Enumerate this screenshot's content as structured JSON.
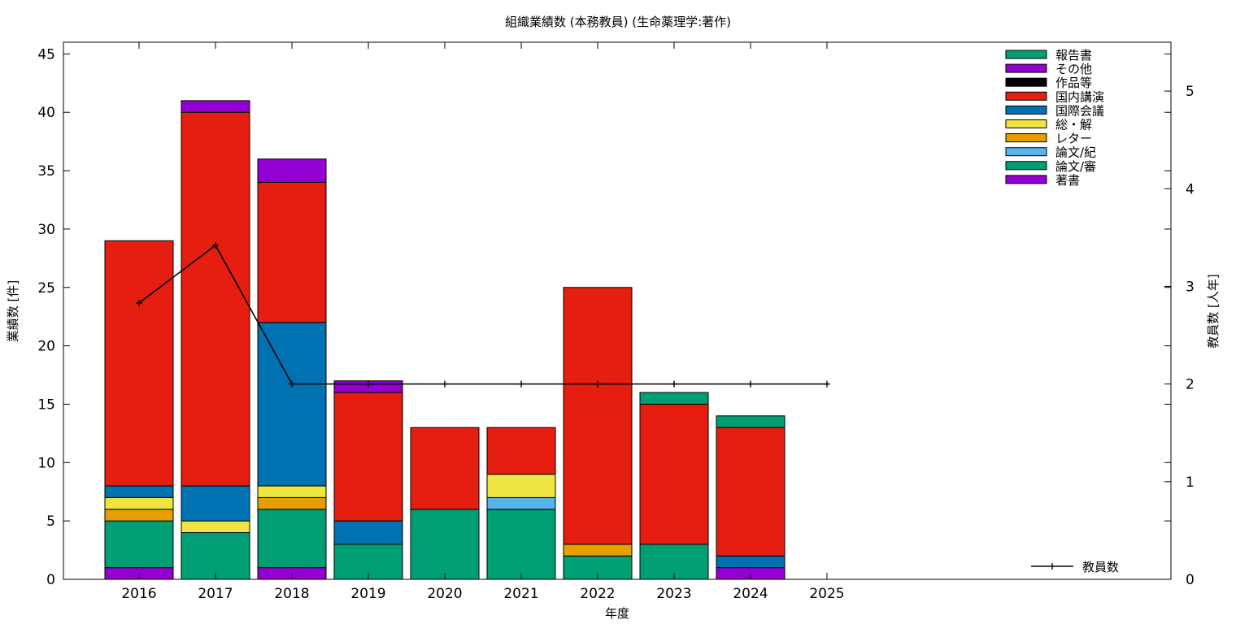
{
  "chart_data": {
    "type": "bar",
    "stacked": true,
    "title": "組織業績数 (本務教員) (生命薬理学:著作)",
    "xlabel": "年度",
    "ylabel": "業績数 [件]",
    "y2label": "教員数 [人年]",
    "categories": [
      "2016",
      "2017",
      "2018",
      "2019",
      "2020",
      "2021",
      "2022",
      "2023",
      "2024",
      "2025"
    ],
    "ylim": [
      0,
      46
    ],
    "y2lim": [
      0,
      5.5
    ],
    "yticks": [
      0,
      5,
      10,
      15,
      20,
      25,
      30,
      35,
      40,
      45
    ],
    "y2ticks": [
      0,
      1,
      2,
      3,
      4,
      5
    ],
    "grid": false,
    "legend_position": "top-right",
    "series": [
      {
        "name": "著書",
        "color": "#9400d3",
        "values": [
          1,
          0,
          1,
          0,
          0,
          0,
          0,
          0,
          1,
          0
        ]
      },
      {
        "name": "論文/審",
        "color": "#009e73",
        "values": [
          4,
          4,
          5,
          3,
          6,
          6,
          2,
          3,
          0,
          0
        ]
      },
      {
        "name": "論文/紀",
        "color": "#56b4e9",
        "values": [
          0,
          0,
          0,
          0,
          0,
          1,
          0,
          0,
          0,
          0
        ]
      },
      {
        "name": "レター",
        "color": "#e69f00",
        "values": [
          1,
          0,
          1,
          0,
          0,
          0,
          1,
          0,
          0,
          0
        ]
      },
      {
        "name": "総・解",
        "color": "#f0e442",
        "values": [
          1,
          1,
          1,
          0,
          0,
          2,
          0,
          0,
          0,
          0
        ]
      },
      {
        "name": "国際会議",
        "color": "#0072b2",
        "values": [
          1,
          3,
          14,
          2,
          0,
          0,
          0,
          0,
          1,
          0
        ]
      },
      {
        "name": "国内講演",
        "color": "#e51e10",
        "values": [
          21,
          32,
          12,
          11,
          7,
          4,
          22,
          12,
          11,
          0
        ]
      },
      {
        "name": "作品等",
        "color": "#000000",
        "values": [
          0,
          0,
          0,
          0,
          0,
          0,
          0,
          0,
          0,
          0
        ]
      },
      {
        "name": "その他",
        "color": "#9400d3",
        "values": [
          0,
          1,
          2,
          1,
          0,
          0,
          0,
          0,
          0,
          0
        ]
      },
      {
        "name": "報告書",
        "color": "#009e73",
        "values": [
          0,
          0,
          0,
          0,
          0,
          0,
          0,
          1,
          1,
          0
        ]
      }
    ],
    "line_series": {
      "name": "教員数",
      "axis": "y2",
      "color": "#000000",
      "values": [
        2.83,
        3.42,
        2,
        2,
        2,
        2,
        2,
        2,
        2,
        2
      ]
    }
  }
}
